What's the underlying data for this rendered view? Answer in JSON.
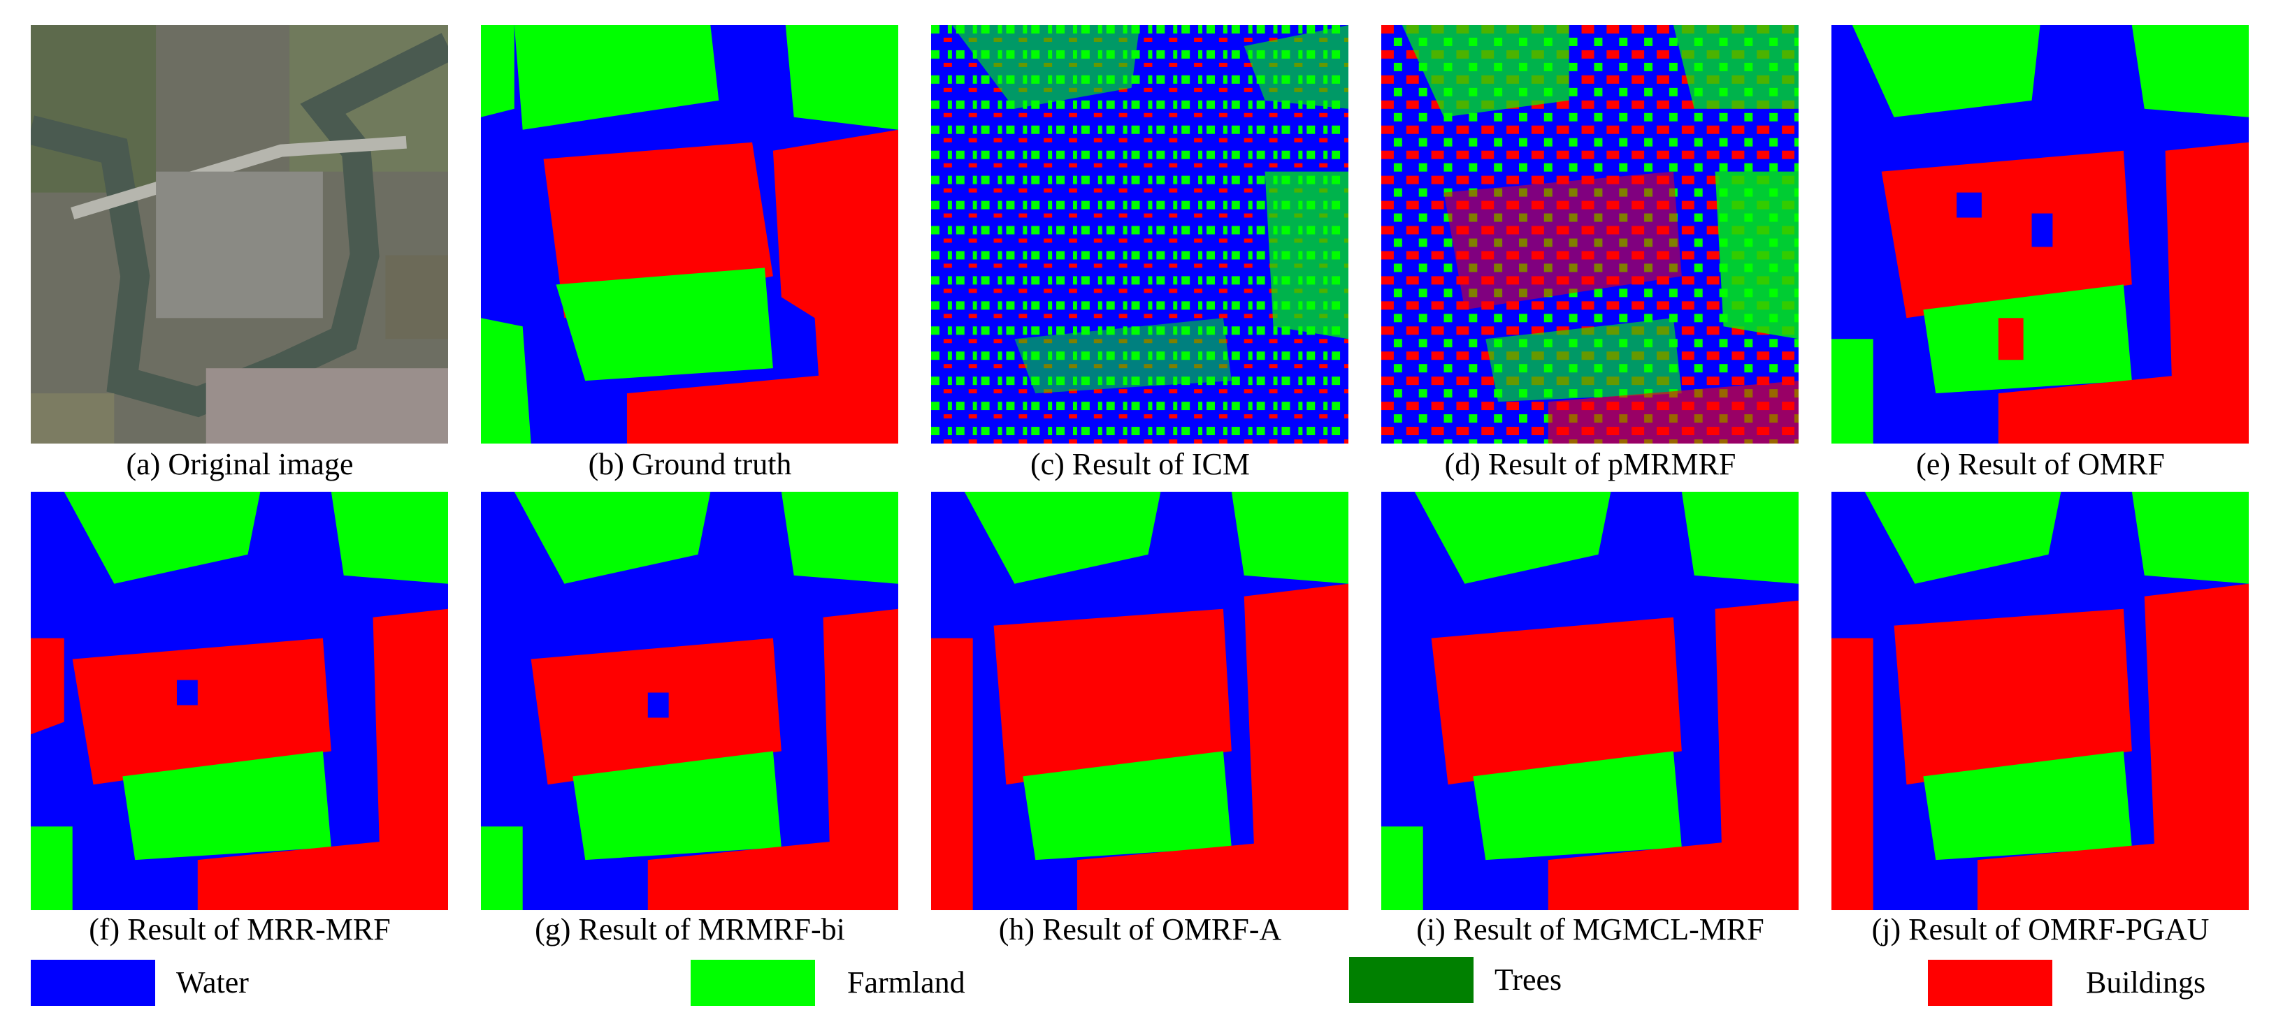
{
  "colors": {
    "water": "#0000FF",
    "farmland": "#00FF00",
    "trees": "#008000",
    "buildings": "#FF0000",
    "photo_base": "#6d6e62"
  },
  "panels": [
    {
      "caption": "(a) Original image",
      "kind": "photo"
    },
    {
      "caption": "(b) Ground truth",
      "kind": "ground-truth"
    },
    {
      "caption": "(c) Result of ICM",
      "kind": "noisy-result"
    },
    {
      "caption": "(d) Result of pMRMRF",
      "kind": "noisy-result"
    },
    {
      "caption": "(e) Result of OMRF",
      "kind": "result"
    },
    {
      "caption": "(f) Result of MRR-MRF",
      "kind": "result"
    },
    {
      "caption": "(g) Result of MRMRF-bi",
      "kind": "result"
    },
    {
      "caption": "(h) Result of OMRF-A",
      "kind": "result"
    },
    {
      "caption": "(i) Result of MGMCL-MRF",
      "kind": "result"
    },
    {
      "caption": "(j) Result of OMRF-PGAU",
      "kind": "result"
    }
  ],
  "legend": [
    {
      "label": "Water",
      "color": "#0000FF"
    },
    {
      "label": "Farmland",
      "color": "#00FF00"
    },
    {
      "label": "Trees",
      "color": "#008000"
    },
    {
      "label": "Buildings",
      "color": "#FF0000"
    }
  ]
}
